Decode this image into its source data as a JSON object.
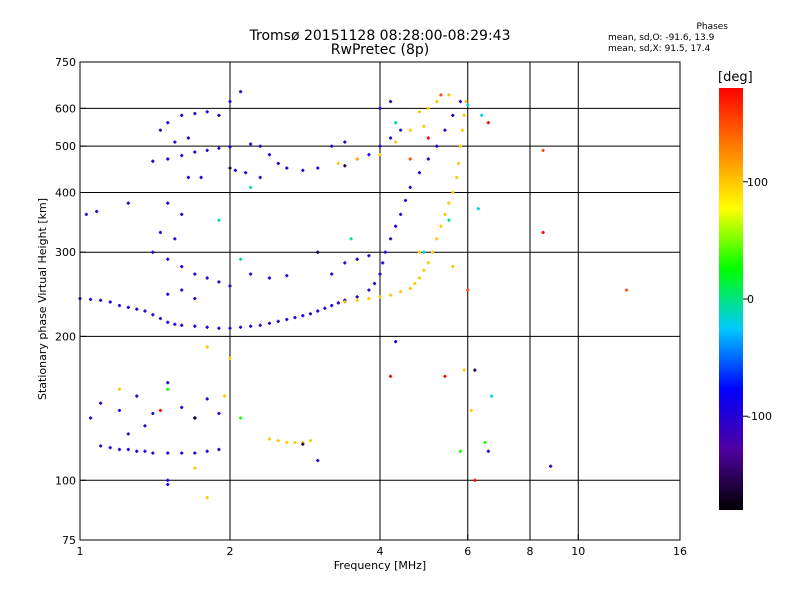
{
  "title": "Tromsø 20151128 08:28:00-08:29:43",
  "subtitle": "RwPretec (8p)",
  "phase_stats": {
    "heading": "Phases",
    "o_line": "mean, sd,O: -91.6, 13.9",
    "x_line": "mean, sd,X:  91.5, 17.4"
  },
  "colorbar": {
    "title": "[deg]",
    "ticks": [
      100,
      0,
      -100
    ],
    "range": [
      -180,
      180
    ],
    "colors": [
      "#000000",
      "#5000a0",
      "#0000ff",
      "#00c8ff",
      "#00ff00",
      "#ffff00",
      "#ff8000",
      "#ff0000"
    ]
  },
  "chart_data": {
    "type": "scatter",
    "xlabel": "Frequency [MHz]",
    "ylabel": "Stationary phase Virtual Height [km]",
    "x_scale": "log",
    "y_scale": "log",
    "xlim": [
      1,
      16
    ],
    "ylim": [
      75,
      750
    ],
    "x_ticks": [
      1,
      2,
      4,
      6,
      8,
      10,
      16
    ],
    "y_ticks": [
      75,
      100,
      200,
      300,
      400,
      500,
      600,
      750
    ],
    "grid_x": [
      2,
      4,
      6,
      8,
      10
    ],
    "grid_y": [
      100,
      200,
      300,
      400,
      500,
      600
    ],
    "series": [
      {
        "phase_deg": -100,
        "points": [
          [
            1.0,
            240
          ],
          [
            1.05,
            239
          ],
          [
            1.1,
            238
          ],
          [
            1.15,
            236
          ],
          [
            1.2,
            232
          ],
          [
            1.25,
            230
          ],
          [
            1.3,
            228
          ],
          [
            1.35,
            226
          ],
          [
            1.4,
            222
          ],
          [
            1.45,
            218
          ],
          [
            1.5,
            214
          ],
          [
            1.55,
            212
          ],
          [
            1.6,
            211
          ],
          [
            1.7,
            210
          ],
          [
            1.8,
            209
          ],
          [
            1.9,
            208
          ],
          [
            2.0,
            208
          ],
          [
            2.1,
            209
          ],
          [
            2.2,
            210
          ],
          [
            2.3,
            211
          ],
          [
            2.4,
            213
          ],
          [
            2.5,
            215
          ],
          [
            2.6,
            217
          ],
          [
            2.7,
            219
          ],
          [
            2.8,
            221
          ],
          [
            2.9,
            223
          ],
          [
            3.0,
            226
          ],
          [
            3.1,
            229
          ],
          [
            3.2,
            232
          ],
          [
            3.3,
            235
          ],
          [
            3.4,
            238
          ],
          [
            3.6,
            242
          ],
          [
            3.8,
            250
          ],
          [
            3.9,
            258
          ],
          [
            4.0,
            270
          ],
          [
            4.05,
            285
          ],
          [
            4.1,
            300
          ],
          [
            4.2,
            320
          ],
          [
            4.3,
            340
          ],
          [
            4.4,
            360
          ],
          [
            4.5,
            385
          ],
          [
            4.6,
            410
          ],
          [
            4.8,
            440
          ],
          [
            5.0,
            470
          ],
          [
            5.2,
            500
          ],
          [
            5.4,
            540
          ],
          [
            5.6,
            580
          ],
          [
            5.8,
            620
          ],
          [
            1.1,
            118
          ],
          [
            1.15,
            117
          ],
          [
            1.2,
            116
          ],
          [
            1.25,
            116
          ],
          [
            1.3,
            115
          ],
          [
            1.35,
            115
          ],
          [
            1.4,
            114
          ],
          [
            1.5,
            114
          ],
          [
            1.6,
            114
          ],
          [
            1.7,
            114
          ],
          [
            1.8,
            115
          ],
          [
            1.9,
            116
          ],
          [
            1.4,
            465
          ],
          [
            1.5,
            470
          ],
          [
            1.6,
            478
          ],
          [
            1.7,
            486
          ],
          [
            1.8,
            490
          ],
          [
            1.9,
            495
          ],
          [
            2.0,
            498
          ],
          [
            2.2,
            505
          ],
          [
            2.3,
            500
          ],
          [
            2.4,
            480
          ],
          [
            2.5,
            460
          ],
          [
            2.6,
            450
          ],
          [
            2.8,
            445
          ],
          [
            3.0,
            450
          ],
          [
            1.5,
            560
          ],
          [
            1.6,
            580
          ],
          [
            1.7,
            585
          ],
          [
            1.8,
            590
          ],
          [
            1.9,
            580
          ],
          [
            2.0,
            620
          ],
          [
            2.1,
            650
          ],
          [
            1.3,
            150
          ],
          [
            1.2,
            140
          ],
          [
            1.1,
            145
          ],
          [
            1.05,
            135
          ],
          [
            1.4,
            138
          ],
          [
            1.5,
            160
          ],
          [
            1.6,
            142
          ],
          [
            1.7,
            135
          ],
          [
            1.8,
            148
          ],
          [
            1.9,
            138
          ],
          [
            1.35,
            130
          ],
          [
            1.25,
            125
          ],
          [
            1.4,
            300
          ],
          [
            1.5,
            290
          ],
          [
            1.6,
            280
          ],
          [
            1.7,
            270
          ],
          [
            1.8,
            265
          ],
          [
            1.9,
            260
          ],
          [
            2.0,
            255
          ],
          [
            2.2,
            270
          ],
          [
            2.4,
            265
          ],
          [
            2.6,
            268
          ],
          [
            3.2,
            270
          ],
          [
            3.4,
            285
          ],
          [
            3.6,
            290
          ],
          [
            3.8,
            295
          ],
          [
            1.5,
            380
          ],
          [
            1.6,
            360
          ],
          [
            1.45,
            330
          ],
          [
            1.55,
            320
          ],
          [
            1.6,
            250
          ],
          [
            1.7,
            240
          ],
          [
            1.5,
            245
          ],
          [
            3.6,
            470
          ],
          [
            3.8,
            480
          ],
          [
            4.0,
            500
          ],
          [
            4.2,
            520
          ],
          [
            4.4,
            540
          ],
          [
            3.2,
            500
          ],
          [
            3.4,
            510
          ],
          [
            4.0,
            600
          ],
          [
            4.2,
            620
          ],
          [
            1.03,
            360
          ],
          [
            1.08,
            365
          ],
          [
            1.25,
            380
          ],
          [
            1.65,
            430
          ],
          [
            1.75,
            430
          ],
          [
            2.05,
            445
          ],
          [
            2.15,
            440
          ],
          [
            2.3,
            430
          ],
          [
            1.55,
            510
          ],
          [
            1.65,
            520
          ],
          [
            1.45,
            540
          ],
          [
            1.5,
            100
          ],
          [
            1.5,
            98
          ],
          [
            3.0,
            110
          ],
          [
            4.3,
            195
          ],
          [
            6.6,
            115
          ],
          [
            8.8,
            107
          ]
        ]
      },
      {
        "phase_deg": 100,
        "points": [
          [
            3.4,
            236
          ],
          [
            3.6,
            238
          ],
          [
            3.8,
            240
          ],
          [
            4.0,
            242
          ],
          [
            4.2,
            244
          ],
          [
            4.4,
            248
          ],
          [
            4.6,
            252
          ],
          [
            4.7,
            258
          ],
          [
            4.8,
            265
          ],
          [
            4.9,
            275
          ],
          [
            5.0,
            285
          ],
          [
            5.1,
            300
          ],
          [
            5.2,
            320
          ],
          [
            5.3,
            340
          ],
          [
            5.4,
            360
          ],
          [
            5.5,
            380
          ],
          [
            5.6,
            400
          ],
          [
            5.7,
            430
          ],
          [
            5.75,
            460
          ],
          [
            5.8,
            500
          ],
          [
            5.85,
            540
          ],
          [
            5.9,
            580
          ],
          [
            5.95,
            620
          ],
          [
            5.5,
            640
          ],
          [
            5.2,
            620
          ],
          [
            5.0,
            600
          ],
          [
            4.8,
            590
          ],
          [
            4.0,
            480
          ],
          [
            4.3,
            510
          ],
          [
            4.6,
            540
          ],
          [
            4.9,
            550
          ],
          [
            3.6,
            470
          ],
          [
            3.3,
            460
          ],
          [
            2.4,
            122
          ],
          [
            2.5,
            121
          ],
          [
            2.6,
            120
          ],
          [
            2.7,
            120
          ],
          [
            2.8,
            120
          ],
          [
            2.9,
            121
          ],
          [
            1.8,
            92
          ],
          [
            1.7,
            106
          ],
          [
            1.2,
            155
          ],
          [
            1.95,
            150
          ],
          [
            2.0,
            180
          ],
          [
            1.8,
            190
          ],
          [
            4.8,
            300
          ],
          [
            5.6,
            280
          ],
          [
            6.1,
            140
          ],
          [
            5.9,
            170
          ]
        ]
      },
      {
        "phase_deg": 0,
        "points": [
          [
            2.1,
            290
          ],
          [
            2.2,
            410
          ],
          [
            1.9,
            350
          ],
          [
            3.5,
            320
          ],
          [
            4.3,
            560
          ],
          [
            5.5,
            350
          ]
        ]
      },
      {
        "phase_deg": 30,
        "points": [
          [
            1.5,
            155
          ],
          [
            2.1,
            135
          ],
          [
            5.8,
            115
          ],
          [
            6.5,
            120
          ]
        ]
      },
      {
        "phase_deg": 180,
        "points": [
          [
            5.0,
            520
          ],
          [
            5.4,
            165
          ],
          [
            6.2,
            100
          ],
          [
            8.5,
            330
          ],
          [
            6.6,
            560
          ],
          [
            4.2,
            165
          ],
          [
            1.45,
            140
          ]
        ]
      },
      {
        "phase_deg": 150,
        "points": [
          [
            5.3,
            640
          ],
          [
            4.6,
            470
          ],
          [
            8.5,
            490
          ],
          [
            12.5,
            250
          ],
          [
            6.0,
            250
          ]
        ]
      },
      {
        "phase_deg": -20,
        "points": [
          [
            4.9,
            300
          ],
          [
            6.4,
            580
          ],
          [
            6.3,
            370
          ],
          [
            6.7,
            150
          ],
          [
            6.0,
            610
          ]
        ]
      },
      {
        "phase_deg": -160,
        "points": [
          [
            2.8,
            119
          ],
          [
            6.2,
            170
          ],
          [
            2.0,
            450
          ],
          [
            3.0,
            300
          ],
          [
            3.4,
            455
          ],
          [
            1.7,
            135
          ]
        ]
      }
    ]
  }
}
